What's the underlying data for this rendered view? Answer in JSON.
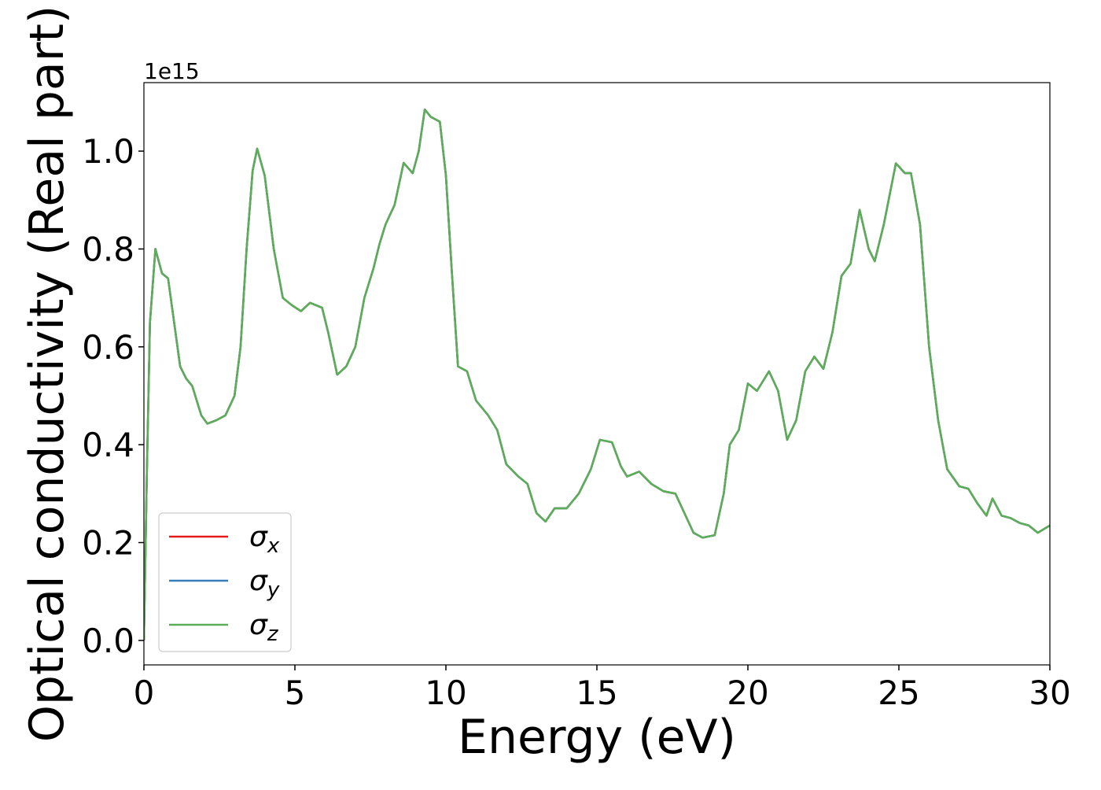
{
  "chart_data": {
    "type": "line",
    "xlabel": "Energy (eV)",
    "ylabel": "Optical conductivity (Real part)",
    "offset_text": "1e15",
    "x": [
      0,
      0.1,
      0.2,
      0.38,
      0.6,
      0.8,
      1.0,
      1.2,
      1.4,
      1.6,
      1.9,
      2.1,
      2.4,
      2.7,
      3.0,
      3.2,
      3.4,
      3.6,
      3.75,
      4.0,
      4.3,
      4.6,
      4.9,
      5.2,
      5.5,
      5.9,
      6.1,
      6.4,
      6.7,
      7.0,
      7.3,
      7.6,
      7.8,
      8.0,
      8.3,
      8.6,
      8.9,
      9.1,
      9.3,
      9.5,
      9.8,
      10.0,
      10.2,
      10.4,
      10.7,
      11.0,
      11.4,
      11.7,
      12.0,
      12.4,
      12.7,
      13.0,
      13.3,
      13.6,
      14.0,
      14.4,
      14.8,
      15.1,
      15.5,
      15.8,
      16.0,
      16.4,
      16.8,
      17.2,
      17.6,
      17.9,
      18.2,
      18.5,
      18.9,
      19.2,
      19.4,
      19.7,
      20.0,
      20.3,
      20.7,
      21.0,
      21.3,
      21.6,
      21.9,
      22.2,
      22.5,
      22.8,
      23.1,
      23.4,
      23.7,
      24.0,
      24.2,
      24.5,
      24.9,
      25.2,
      25.4,
      25.7,
      26.0,
      26.3,
      26.6,
      27.0,
      27.3,
      27.6,
      27.9,
      28.1,
      28.4,
      28.7,
      29.0,
      29.3,
      29.6,
      30.0
    ],
    "series": [
      {
        "name": "σx",
        "color": "#e41a1c",
        "values": [
          0,
          0.35,
          0.65,
          0.8,
          0.75,
          0.74,
          0.65,
          0.56,
          0.535,
          0.52,
          0.46,
          0.443,
          0.45,
          0.46,
          0.5,
          0.6,
          0.8,
          0.96,
          1.005,
          0.95,
          0.8,
          0.7,
          0.685,
          0.673,
          0.69,
          0.68,
          0.63,
          0.543,
          0.56,
          0.6,
          0.7,
          0.76,
          0.81,
          0.85,
          0.89,
          0.976,
          0.955,
          1.0,
          1.085,
          1.07,
          1.06,
          0.95,
          0.75,
          0.56,
          0.55,
          0.49,
          0.46,
          0.43,
          0.36,
          0.335,
          0.32,
          0.26,
          0.243,
          0.27,
          0.27,
          0.3,
          0.35,
          0.41,
          0.405,
          0.355,
          0.335,
          0.345,
          0.32,
          0.305,
          0.3,
          0.26,
          0.22,
          0.21,
          0.215,
          0.3,
          0.4,
          0.43,
          0.525,
          0.51,
          0.55,
          0.51,
          0.41,
          0.45,
          0.55,
          0.58,
          0.555,
          0.63,
          0.745,
          0.77,
          0.88,
          0.8,
          0.775,
          0.85,
          0.975,
          0.955,
          0.955,
          0.85,
          0.6,
          0.45,
          0.35,
          0.315,
          0.31,
          0.28,
          0.255,
          0.29,
          0.255,
          0.25,
          0.24,
          0.235,
          0.22,
          0.235
        ]
      },
      {
        "name": "σy",
        "color": "#377eb8",
        "values": [
          0,
          0.35,
          0.65,
          0.8,
          0.75,
          0.74,
          0.65,
          0.56,
          0.535,
          0.52,
          0.46,
          0.443,
          0.45,
          0.46,
          0.5,
          0.6,
          0.8,
          0.96,
          1.005,
          0.95,
          0.8,
          0.7,
          0.685,
          0.673,
          0.69,
          0.68,
          0.63,
          0.543,
          0.56,
          0.6,
          0.7,
          0.76,
          0.81,
          0.85,
          0.89,
          0.976,
          0.955,
          1.0,
          1.085,
          1.07,
          1.06,
          0.95,
          0.75,
          0.56,
          0.55,
          0.49,
          0.46,
          0.43,
          0.36,
          0.335,
          0.32,
          0.26,
          0.243,
          0.27,
          0.27,
          0.3,
          0.35,
          0.41,
          0.405,
          0.355,
          0.335,
          0.345,
          0.32,
          0.305,
          0.3,
          0.26,
          0.22,
          0.21,
          0.215,
          0.3,
          0.4,
          0.43,
          0.525,
          0.51,
          0.55,
          0.51,
          0.41,
          0.45,
          0.55,
          0.58,
          0.555,
          0.63,
          0.745,
          0.77,
          0.88,
          0.8,
          0.775,
          0.85,
          0.975,
          0.955,
          0.955,
          0.85,
          0.6,
          0.45,
          0.35,
          0.315,
          0.31,
          0.28,
          0.255,
          0.29,
          0.255,
          0.25,
          0.24,
          0.235,
          0.22,
          0.235
        ]
      },
      {
        "name": "σz",
        "color": "#5aae57",
        "values": [
          0,
          0.35,
          0.65,
          0.8,
          0.75,
          0.74,
          0.65,
          0.56,
          0.535,
          0.52,
          0.46,
          0.443,
          0.45,
          0.46,
          0.5,
          0.6,
          0.8,
          0.96,
          1.005,
          0.95,
          0.8,
          0.7,
          0.685,
          0.673,
          0.69,
          0.68,
          0.63,
          0.543,
          0.56,
          0.6,
          0.7,
          0.76,
          0.81,
          0.85,
          0.89,
          0.976,
          0.955,
          1.0,
          1.085,
          1.07,
          1.06,
          0.95,
          0.75,
          0.56,
          0.55,
          0.49,
          0.46,
          0.43,
          0.36,
          0.335,
          0.32,
          0.26,
          0.243,
          0.27,
          0.27,
          0.3,
          0.35,
          0.41,
          0.405,
          0.355,
          0.335,
          0.345,
          0.32,
          0.305,
          0.3,
          0.26,
          0.22,
          0.21,
          0.215,
          0.3,
          0.4,
          0.43,
          0.525,
          0.51,
          0.55,
          0.51,
          0.41,
          0.45,
          0.55,
          0.58,
          0.555,
          0.63,
          0.745,
          0.77,
          0.88,
          0.8,
          0.775,
          0.85,
          0.975,
          0.955,
          0.955,
          0.85,
          0.6,
          0.45,
          0.35,
          0.315,
          0.31,
          0.28,
          0.255,
          0.29,
          0.255,
          0.25,
          0.24,
          0.235,
          0.22,
          0.235
        ]
      }
    ],
    "xlim": [
      0,
      30
    ],
    "xticks": [
      0,
      5,
      10,
      15,
      20,
      25,
      30
    ],
    "ylim": [
      -0.05,
      1.14
    ],
    "yticks": [
      {
        "value": 0,
        "label": "0.0"
      },
      0.2,
      0.4,
      0.6,
      0.8,
      {
        "value": 1,
        "label": "1.0"
      }
    ],
    "legend": "lower left",
    "grid": false
  }
}
